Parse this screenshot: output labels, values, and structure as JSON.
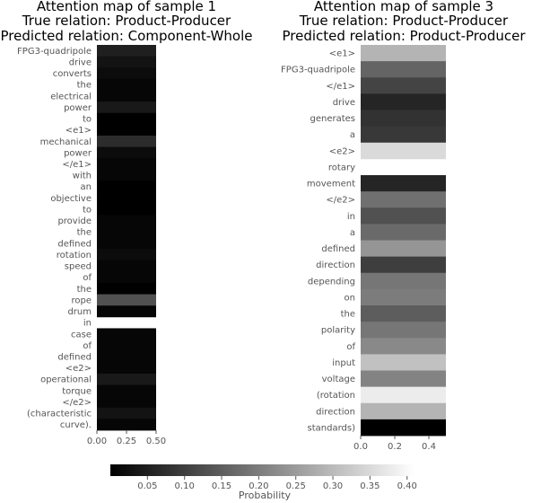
{
  "chart_data": [
    {
      "type": "heatmap",
      "title_lines": [
        "Attention map of sample 1",
        "True relation: Product-Producer",
        "Predicted relation: Component-Whole"
      ],
      "tokens": [
        "FPG3-quadripole",
        "drive",
        "converts",
        "the",
        "electrical",
        "power",
        "to",
        "<e1>",
        "mechanical",
        "power",
        "</e1>",
        "with",
        "an",
        "objective",
        "to",
        "provide",
        "the",
        "defined",
        "rotation",
        "speed",
        "of",
        "the",
        "rope",
        "drum",
        "in",
        "case",
        "of",
        "defined",
        "<e2>",
        "operational",
        "torque",
        "</e2>",
        "(characteristic",
        "curve)."
      ],
      "values": [
        0.05,
        0.03,
        0.02,
        0.01,
        0.01,
        0.04,
        0.0,
        0.0,
        0.07,
        0.02,
        0.01,
        0.01,
        0.0,
        0.0,
        0.0,
        0.01,
        0.01,
        0.01,
        0.02,
        0.01,
        0.01,
        0.0,
        0.13,
        0.01,
        null,
        0.01,
        0.01,
        0.01,
        0.01,
        0.04,
        0.01,
        0.01,
        0.03,
        0.01
      ],
      "x_ticks": [
        "0.00",
        "0.25",
        "0.50"
      ],
      "xlim": [
        0,
        0.5
      ]
    },
    {
      "type": "heatmap",
      "title_lines": [
        "Attention map of sample 3",
        "True relation: Product-Producer",
        "Predicted relation: Product-Producer"
      ],
      "tokens": [
        "<e1>",
        "FPG3-quadripole",
        "</e1>",
        "drive",
        "generates",
        "a",
        "<e2>",
        "rotary",
        "movement",
        "</e2>",
        "in",
        "a",
        "defined",
        "direction",
        "depending",
        "on",
        "the",
        "polarity",
        "of",
        "input",
        "voltage",
        "(rotation",
        "direction",
        "standards)"
      ],
      "values": [
        0.29,
        0.16,
        0.11,
        0.06,
        0.08,
        0.09,
        0.35,
        null,
        0.06,
        0.18,
        0.13,
        0.17,
        0.24,
        0.1,
        0.19,
        0.2,
        0.15,
        0.19,
        0.22,
        0.31,
        0.21,
        0.38,
        0.29,
        0.0
      ],
      "x_ticks": [
        "0.0",
        "0.2",
        "0.4"
      ],
      "xlim": [
        0,
        0.5
      ]
    }
  ],
  "colorbar": {
    "label": "Probability",
    "ticks": [
      "0.05",
      "0.10",
      "0.15",
      "0.20",
      "0.25",
      "0.30",
      "0.35",
      "0.40"
    ],
    "range": [
      0,
      0.41
    ]
  }
}
